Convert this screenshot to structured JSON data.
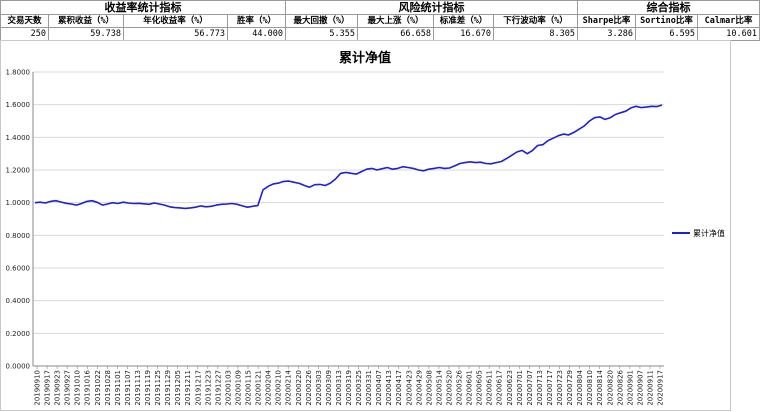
{
  "table": {
    "groups": [
      "收益率统计指标",
      "风险统计指标",
      "综合指标"
    ],
    "headers": [
      "交易天数",
      "累积收益（%）",
      "年化收益率（%）",
      "胜率（%）",
      "最大回撤（%）",
      "最大上涨（%）",
      "标准差（%）",
      "下行波动率（%）",
      "Sharpe比率",
      "Sortino比率",
      "Calmar比率"
    ],
    "values": [
      "250",
      "59.738",
      "56.773",
      "44.000",
      "5.355",
      "66.658",
      "16.670",
      "8.305",
      "3.286",
      "6.595",
      "10.601"
    ]
  },
  "chart_data": {
    "type": "line",
    "title": "累计净值",
    "xlabel": "",
    "ylabel": "",
    "ylim": [
      0,
      1.8
    ],
    "ytick_labels": [
      "0.0000",
      "0.2000",
      "0.4000",
      "0.6000",
      "0.8000",
      "1.0000",
      "1.2000",
      "1.4000",
      "1.6000",
      "1.8000"
    ],
    "grid": true,
    "legend_position": "right",
    "x_tick_labels": [
      "20190910",
      "20190917",
      "20190923",
      "20190927",
      "20191010",
      "20191016",
      "20191022",
      "20191028",
      "20191101",
      "20191107",
      "20191113",
      "20191119",
      "20191125",
      "20191129",
      "20191205",
      "20191211",
      "20191217",
      "20191223",
      "20191227",
      "20200103",
      "20200109",
      "20200115",
      "20200121",
      "20200204",
      "20200210",
      "20200214",
      "20200220",
      "20200226",
      "20200303",
      "20200309",
      "20200313",
      "20200319",
      "20200325",
      "20200331",
      "20200407",
      "20200413",
      "20200417",
      "20200423",
      "20200429",
      "20200508",
      "20200514",
      "20200520",
      "20200526",
      "20200601",
      "20200605",
      "20200611",
      "20200617",
      "20200623",
      "20200701",
      "20200707",
      "20200713",
      "20200717",
      "20200723",
      "20200729",
      "20200804",
      "20200810",
      "20200814",
      "20200820",
      "20200826",
      "20200901",
      "20200907",
      "20200911",
      "20200917"
    ],
    "series": [
      {
        "name": "累计净值",
        "color": "#1f1fd6",
        "values": [
          1.0,
          1.003,
          0.998,
          1.008,
          1.012,
          1.004,
          0.996,
          0.992,
          0.985,
          0.995,
          1.008,
          1.012,
          1.002,
          0.985,
          0.992,
          1.0,
          0.995,
          1.003,
          0.998,
          0.995,
          0.996,
          0.993,
          0.99,
          0.998,
          0.992,
          0.985,
          0.975,
          0.97,
          0.968,
          0.965,
          0.968,
          0.972,
          0.98,
          0.975,
          0.978,
          0.985,
          0.99,
          0.992,
          0.995,
          0.99,
          0.98,
          0.972,
          0.978,
          0.982,
          1.078,
          1.1,
          1.115,
          1.12,
          1.13,
          1.132,
          1.125,
          1.118,
          1.105,
          1.095,
          1.11,
          1.112,
          1.105,
          1.12,
          1.145,
          1.18,
          1.185,
          1.18,
          1.175,
          1.19,
          1.205,
          1.21,
          1.2,
          1.208,
          1.215,
          1.205,
          1.21,
          1.22,
          1.215,
          1.21,
          1.2,
          1.195,
          1.205,
          1.21,
          1.215,
          1.21,
          1.212,
          1.225,
          1.24,
          1.245,
          1.25,
          1.245,
          1.248,
          1.24,
          1.238,
          1.245,
          1.252,
          1.27,
          1.29,
          1.31,
          1.32,
          1.3,
          1.32,
          1.35,
          1.355,
          1.38,
          1.395,
          1.41,
          1.42,
          1.415,
          1.43,
          1.45,
          1.47,
          1.5,
          1.52,
          1.525,
          1.51,
          1.52,
          1.54,
          1.55,
          1.56,
          1.58,
          1.59,
          1.582,
          1.585,
          1.59,
          1.588,
          1.598
        ]
      }
    ]
  }
}
